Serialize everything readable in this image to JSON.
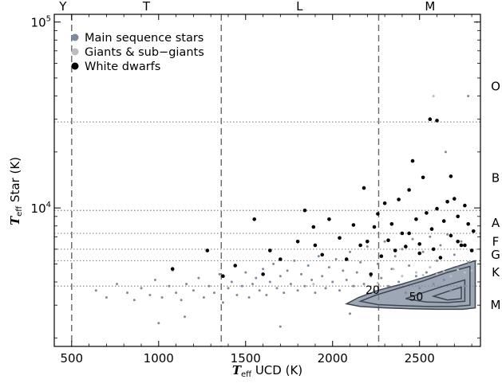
{
  "chart_data": {
    "type": "scatter",
    "xlabel_symbol": "T",
    "xlabel_sub": "eff",
    "xlabel_rest": " UCD (K)",
    "ylabel_symbol": "T",
    "ylabel_sub": "eff",
    "ylabel_rest": " Star (K)",
    "xlim": [
      400,
      2850
    ],
    "ylim": [
      1800,
      110000
    ],
    "y_scale": "log",
    "x_ticks": [
      "500",
      "1000",
      "1500",
      "2000",
      "2500"
    ],
    "x_tick_values": [
      500,
      1000,
      1500,
      2000,
      2500
    ],
    "y_tick_labels": [
      {
        "base": "10",
        "exp": "4",
        "value": 10000
      },
      {
        "base": "10",
        "exp": "5",
        "value": 100000
      }
    ],
    "ucd_type_boundaries": [
      500,
      1360,
      2265
    ],
    "ucd_type_labels": [
      {
        "label": "Y",
        "x": 450
      },
      {
        "label": "T",
        "x": 930
      },
      {
        "label": "L",
        "x": 1810
      },
      {
        "label": "M",
        "x": 2560
      }
    ],
    "star_type_boundaries": [
      29000,
      9700,
      7300,
      6000,
      5200,
      3800
    ],
    "star_type_labels": [
      {
        "label": "O",
        "y": 45000
      },
      {
        "label": "B",
        "y": 14500
      },
      {
        "label": "A",
        "y": 8300
      },
      {
        "label": "F",
        "y": 6600
      },
      {
        "label": "G",
        "y": 5600
      },
      {
        "label": "K",
        "y": 4500
      },
      {
        "label": "M",
        "y": 3000
      }
    ],
    "contour_labels": [
      {
        "label": "20",
        "x": 2230,
        "y": 3450
      },
      {
        "label": "50",
        "x": 2480,
        "y": 3180
      }
    ],
    "legend": [
      {
        "label": "Main sequence stars",
        "color": "#7c8a9e"
      },
      {
        "label": "Giants & sub−giants",
        "color": "#bdbdbd"
      },
      {
        "label": "White dwarfs",
        "color": "#000000"
      }
    ],
    "legend_position": "top-left",
    "series": [
      {
        "color": "#7c8a9e",
        "points": [
          [
            640,
            3600
          ],
          [
            700,
            3300
          ],
          [
            760,
            3900
          ],
          [
            820,
            3500
          ],
          [
            860,
            3200
          ],
          [
            900,
            3700
          ],
          [
            950,
            3400
          ],
          [
            980,
            4100
          ],
          [
            1020,
            3300
          ],
          [
            1060,
            3800
          ],
          [
            1080,
            4600
          ],
          [
            1100,
            3500
          ],
          [
            1130,
            3200
          ],
          [
            1160,
            3900
          ],
          [
            1200,
            3600
          ],
          [
            1230,
            4200
          ],
          [
            1260,
            3300
          ],
          [
            1290,
            3800
          ],
          [
            1320,
            3500
          ],
          [
            1350,
            4400
          ],
          [
            1370,
            3100
          ],
          [
            1400,
            3700
          ],
          [
            1420,
            4000
          ],
          [
            1450,
            3400
          ],
          [
            1480,
            3800
          ],
          [
            1500,
            4500
          ],
          [
            1520,
            3300
          ],
          [
            1540,
            3900
          ],
          [
            1560,
            4200
          ],
          [
            1580,
            3600
          ],
          [
            1600,
            4700
          ],
          [
            1620,
            3400
          ],
          [
            1640,
            4000
          ],
          [
            1660,
            5000
          ],
          [
            1680,
            3700
          ],
          [
            1700,
            4300
          ],
          [
            1720,
            3500
          ],
          [
            1740,
            4600
          ],
          [
            1760,
            3900
          ],
          [
            1780,
            5200
          ],
          [
            1800,
            3600
          ],
          [
            1820,
            4400
          ],
          [
            1840,
            3800
          ],
          [
            1860,
            4900
          ],
          [
            1880,
            4100
          ],
          [
            1900,
            3500
          ],
          [
            1920,
            5500
          ],
          [
            1940,
            4300
          ],
          [
            1960,
            3700
          ],
          [
            1980,
            4800
          ],
          [
            2000,
            4000
          ],
          [
            2020,
            5300
          ],
          [
            2040,
            3600
          ],
          [
            2060,
            4600
          ],
          [
            2080,
            4100
          ],
          [
            2100,
            5800
          ],
          [
            2120,
            3800
          ],
          [
            2140,
            4500
          ],
          [
            2160,
            5100
          ],
          [
            2180,
            3900
          ],
          [
            2200,
            6200
          ],
          [
            2220,
            4300
          ],
          [
            2240,
            3600
          ],
          [
            2260,
            5000
          ],
          [
            2280,
            4200
          ],
          [
            2300,
            6600
          ],
          [
            2320,
            3800
          ],
          [
            2340,
            4700
          ],
          [
            2360,
            5500
          ],
          [
            2380,
            4000
          ],
          [
            2400,
            6000
          ],
          [
            2420,
            3500
          ],
          [
            2440,
            4900
          ],
          [
            2460,
            6800
          ],
          [
            2480,
            4300
          ],
          [
            2500,
            3700
          ],
          [
            2520,
            5800
          ],
          [
            2540,
            4500
          ],
          [
            2560,
            7000
          ],
          [
            2580,
            3900
          ],
          [
            2600,
            5200
          ],
          [
            2620,
            6300
          ],
          [
            2640,
            4100
          ],
          [
            2660,
            7200
          ],
          [
            2680,
            3600
          ],
          [
            2700,
            5600
          ],
          [
            2720,
            4800
          ],
          [
            2740,
            6600
          ],
          [
            2760,
            3800
          ],
          [
            2780,
            5100
          ],
          [
            1000,
            2400
          ],
          [
            1150,
            2600
          ],
          [
            1700,
            2300
          ],
          [
            2100,
            2700
          ],
          [
            2650,
            20000
          ],
          [
            2780,
            40000
          ]
        ]
      },
      {
        "color": "#bdbdbd",
        "points": [
          [
            1080,
            4600
          ],
          [
            1890,
            3900
          ],
          [
            2260,
            3950
          ],
          [
            2350,
            4700
          ],
          [
            2400,
            4300
          ],
          [
            2480,
            4500
          ],
          [
            2520,
            4350
          ],
          [
            2560,
            4800
          ],
          [
            2600,
            4400
          ],
          [
            2640,
            4550
          ],
          [
            2680,
            4300
          ],
          [
            2720,
            4650
          ],
          [
            2760,
            4500
          ],
          [
            2800,
            4600
          ],
          [
            2580,
            40000
          ],
          [
            2830,
            100000
          ]
        ]
      },
      {
        "color": "#000000",
        "points": [
          [
            1080,
            4700
          ],
          [
            1280,
            5900
          ],
          [
            1370,
            4300
          ],
          [
            1440,
            4900
          ],
          [
            1550,
            8700
          ],
          [
            1600,
            4400
          ],
          [
            1640,
            5900
          ],
          [
            1700,
            5300
          ],
          [
            1800,
            6600
          ],
          [
            1840,
            9700
          ],
          [
            1890,
            7900
          ],
          [
            1900,
            6300
          ],
          [
            1940,
            5600
          ],
          [
            1980,
            8700
          ],
          [
            2040,
            6900
          ],
          [
            2080,
            5300
          ],
          [
            2120,
            8100
          ],
          [
            2160,
            6300
          ],
          [
            2180,
            12800
          ],
          [
            2200,
            6600
          ],
          [
            2220,
            4400
          ],
          [
            2240,
            7900
          ],
          [
            2260,
            9300
          ],
          [
            2280,
            5500
          ],
          [
            2300,
            10600
          ],
          [
            2320,
            6700
          ],
          [
            2340,
            8200
          ],
          [
            2360,
            5900
          ],
          [
            2380,
            11100
          ],
          [
            2400,
            7300
          ],
          [
            2420,
            6200
          ],
          [
            2440,
            12500
          ],
          [
            2460,
            17900
          ],
          [
            2480,
            8700
          ],
          [
            2500,
            6400
          ],
          [
            2520,
            14600
          ],
          [
            2540,
            9400
          ],
          [
            2560,
            30000
          ],
          [
            2570,
            7700
          ],
          [
            2580,
            6000
          ],
          [
            2600,
            29500
          ],
          [
            2600,
            9900
          ],
          [
            2620,
            5400
          ],
          [
            2640,
            8500
          ],
          [
            2660,
            10800
          ],
          [
            2680,
            7100
          ],
          [
            2700,
            11200
          ],
          [
            2720,
            9000
          ],
          [
            2740,
            6300
          ],
          [
            2760,
            10300
          ],
          [
            2780,
            8200
          ],
          [
            2800,
            5900
          ],
          [
            2810,
            7500
          ],
          [
            2680,
            14800
          ],
          [
            2720,
            6600
          ],
          [
            2500,
            5700
          ],
          [
            2760,
            6300
          ],
          [
            2440,
            7300
          ]
        ]
      }
    ],
    "contours": [
      {
        "level": "outer",
        "x": [
          2080,
          2150,
          2260,
          2400,
          2550,
          2700,
          2820,
          2820,
          2750,
          2600,
          2450,
          2300,
          2160,
          2080
        ],
        "y": [
          3050,
          3300,
          3600,
          3900,
          4300,
          4800,
          5200,
          2900,
          2850,
          2850,
          2870,
          2900,
          2950,
          3050
        ]
      },
      {
        "level": "20",
        "x": [
          2160,
          2250,
          2380,
          2520,
          2660,
          2790,
          2790,
          2700,
          2550,
          2400,
          2260,
          2160
        ],
        "y": [
          3150,
          3400,
          3700,
          4050,
          4500,
          4850,
          3000,
          2950,
          2950,
          2980,
          3020,
          3150
        ]
      },
      {
        "level": "50",
        "x": [
          2420,
          2520,
          2640,
          2760,
          2760,
          2660,
          2540,
          2420
        ],
        "y": [
          3250,
          3500,
          3800,
          4100,
          3150,
          3100,
          3120,
          3250
        ]
      },
      {
        "level": "inner",
        "x": [
          2580,
          2660,
          2740,
          2740,
          2660,
          2580
        ],
        "y": [
          3350,
          3550,
          3750,
          3250,
          3200,
          3350
        ]
      }
    ]
  }
}
